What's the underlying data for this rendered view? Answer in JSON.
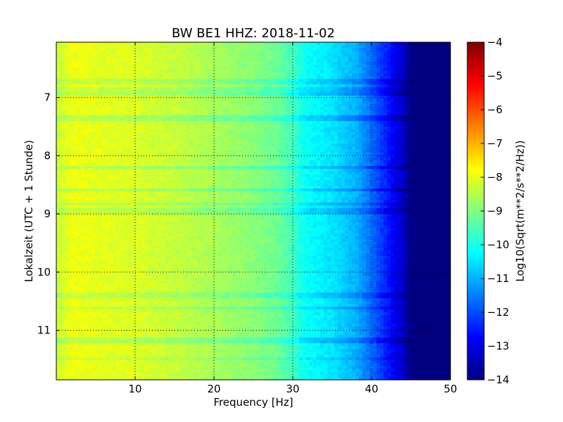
{
  "chart_data": {
    "type": "heatmap",
    "title": "BW BE1 HHZ: 2018-11-02",
    "xlabel": "Frequency [Hz]",
    "ylabel": "Lokalzeit (UTC + 1 Stunde)",
    "xlim": [
      0,
      50
    ],
    "ylim": [
      11.85,
      6.05
    ],
    "y_inverted": true,
    "grid": true,
    "x_ticks": [
      10,
      20,
      30,
      40,
      50
    ],
    "x_tick_labels": [
      "10",
      "20",
      "30",
      "40",
      "50"
    ],
    "y_ticks": [
      7,
      8,
      9,
      10,
      11
    ],
    "y_tick_labels": [
      "7",
      "8",
      "9",
      "10",
      "11"
    ],
    "colorbar": {
      "label": "Log10(Sqrt(m**2/s**2/Hz))",
      "range": [
        -14,
        -4
      ],
      "ticks": [
        -4,
        -5,
        -6,
        -7,
        -8,
        -9,
        -10,
        -11,
        -12,
        -13,
        -14
      ],
      "tick_labels": [
        "−4",
        "−5",
        "−6",
        "−7",
        "−8",
        "−9",
        "−10",
        "−11",
        "−12",
        "−13",
        "−14"
      ],
      "colormap": "jet"
    },
    "frequency_profile": {
      "frequency_hz": [
        0,
        2,
        5,
        10,
        15,
        20,
        25,
        28,
        30,
        31,
        32,
        35,
        38,
        40,
        42,
        44,
        45,
        50
      ],
      "log10_amplitude": [
        -8.3,
        -7.9,
        -8.0,
        -8.1,
        -8.3,
        -8.6,
        -8.9,
        -9.2,
        -9.6,
        -10.0,
        -10.2,
        -10.5,
        -11.0,
        -11.7,
        -12.5,
        -13.3,
        -14.0,
        -14.0
      ]
    },
    "horizontal_bands": [
      {
        "time": 6.95,
        "delta": -0.5
      },
      {
        "time": 6.72,
        "delta": -0.4
      },
      {
        "time": 6.88,
        "delta": -0.4
      },
      {
        "time": 7.35,
        "delta": -0.5
      },
      {
        "time": 8.2,
        "delta": -0.5
      },
      {
        "time": 8.6,
        "delta": -0.5
      },
      {
        "time": 8.83,
        "delta": -0.4
      },
      {
        "time": 8.95,
        "delta": -0.4
      },
      {
        "time": 10.4,
        "delta": -0.4
      },
      {
        "time": 10.63,
        "delta": -0.4
      },
      {
        "time": 11.18,
        "delta": -0.5
      },
      {
        "time": 11.5,
        "delta": -0.3
      }
    ]
  }
}
